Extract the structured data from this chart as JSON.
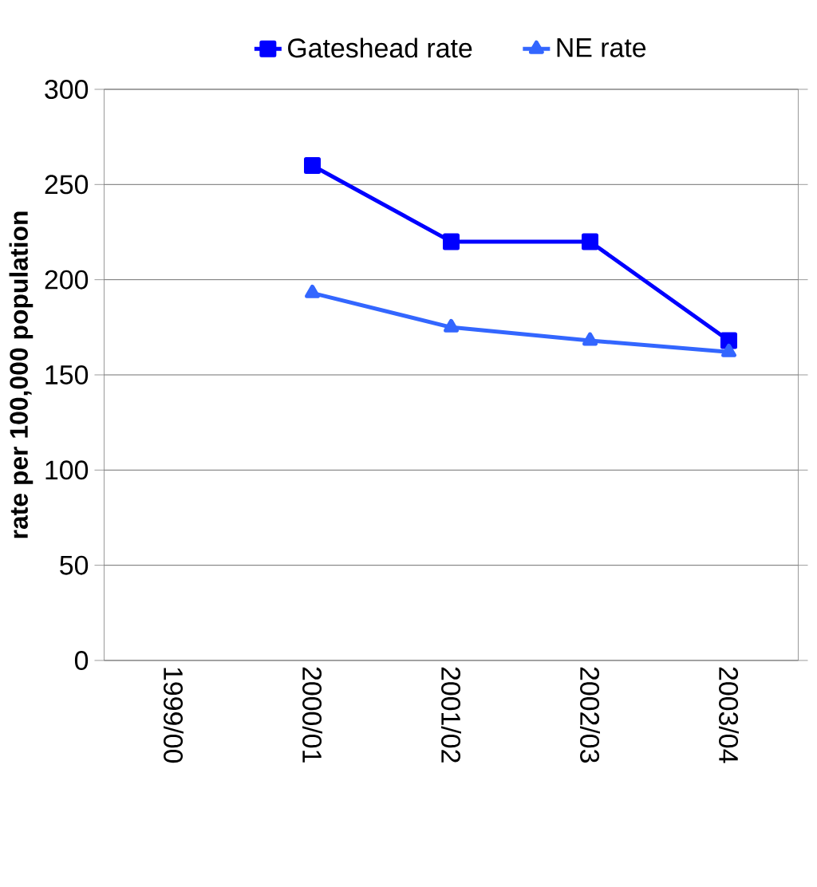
{
  "chart_data": {
    "type": "line",
    "ylabel": "rate per 100,000 population",
    "categories": [
      "1999/00",
      "2000/01",
      "2001/02",
      "2002/03",
      "2003/04"
    ],
    "series": [
      {
        "name": "Gateshead rate",
        "color": "#0000ff",
        "marker": "square",
        "values": [
          null,
          260,
          220,
          220,
          168
        ]
      },
      {
        "name": "NE rate",
        "color": "#3366ff",
        "marker": "triangle",
        "values": [
          null,
          193,
          175,
          168,
          162
        ]
      }
    ],
    "ylim": [
      0,
      300
    ],
    "yticks": [
      0,
      50,
      100,
      150,
      200,
      250,
      300
    ],
    "grid": "y",
    "legend": "top"
  }
}
